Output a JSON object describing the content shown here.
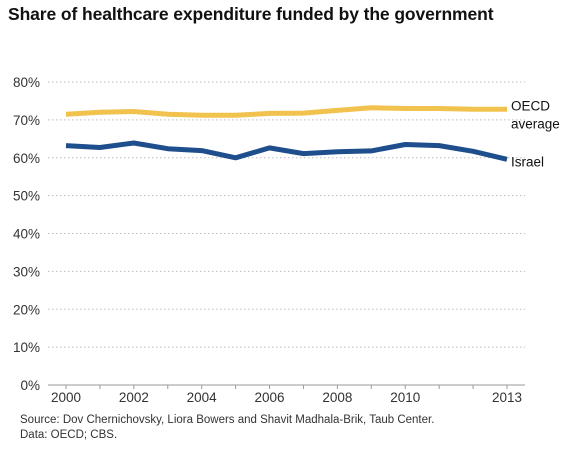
{
  "chart_data": {
    "type": "line",
    "title": "Share of healthcare expenditure funded by the government",
    "x": [
      2000,
      2001,
      2002,
      2003,
      2004,
      2005,
      2006,
      2007,
      2008,
      2009,
      2010,
      2011,
      2012,
      2013
    ],
    "x_tick_labels": [
      "2000",
      "2002",
      "2004",
      "2006",
      "2008",
      "2010",
      "2013"
    ],
    "x_tick_values": [
      2000,
      2002,
      2004,
      2006,
      2008,
      2010,
      2013
    ],
    "y_tick_labels": [
      "0%",
      "10%",
      "20%",
      "30%",
      "40%",
      "50%",
      "60%",
      "70%",
      "80%"
    ],
    "y_tick_values": [
      0,
      10,
      20,
      30,
      40,
      50,
      60,
      70,
      80
    ],
    "ylim": [
      0,
      80
    ],
    "xlim": [
      2000,
      2013
    ],
    "grid": "horizontal dotted",
    "xlabel": "",
    "ylabel": "",
    "series": [
      {
        "name": "OECD average",
        "label_lines": [
          "OECD",
          "average"
        ],
        "color": "#F2C24E",
        "values": [
          71.5,
          72.0,
          72.2,
          71.5,
          71.2,
          71.2,
          71.7,
          71.8,
          72.5,
          73.2,
          73.0,
          73.0,
          72.8,
          72.8
        ]
      },
      {
        "name": "Israel",
        "label_lines": [
          "Israel"
        ],
        "color": "#1F4E8C",
        "values": [
          63.2,
          62.7,
          63.9,
          62.4,
          61.9,
          60.0,
          62.6,
          61.1,
          61.6,
          61.8,
          63.5,
          63.2,
          61.7,
          59.6
        ]
      }
    ]
  },
  "footer": {
    "source": "Source: Dov Chernichovsky, Liora Bowers and Shavit Madhala-Brik, Taub Center.",
    "data": "Data: OECD; CBS."
  }
}
